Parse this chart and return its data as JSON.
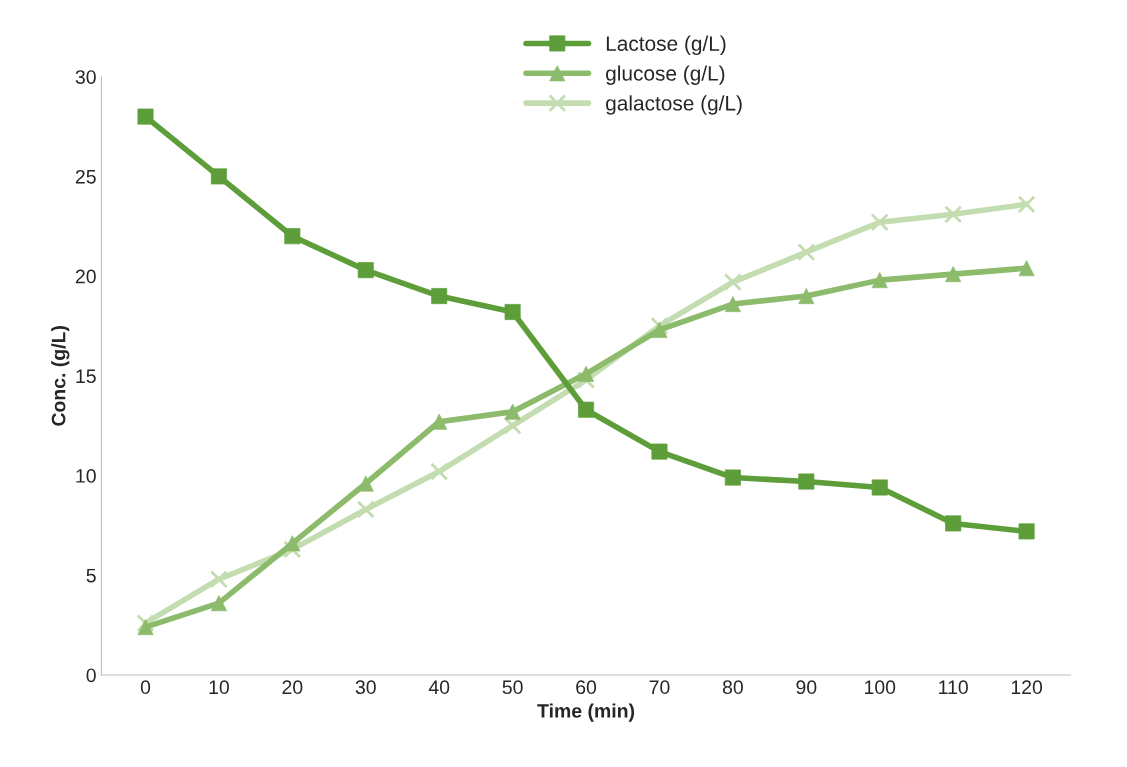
{
  "chart_data": {
    "type": "line",
    "xlabel": "Time (min)",
    "ylabel": "Conc. (g/L)",
    "categories": [
      "0",
      "10",
      "20",
      "30",
      "40",
      "50",
      "60",
      "70",
      "80",
      "90",
      "100",
      "110",
      "120"
    ],
    "series": [
      {
        "name": "Lactose (g/L)",
        "color": "#5e9e3a",
        "marker": "square",
        "values": [
          28.0,
          25.0,
          22.0,
          20.3,
          19.0,
          18.2,
          13.3,
          11.2,
          9.9,
          9.7,
          9.4,
          7.6,
          7.2
        ]
      },
      {
        "name": "glucose (g/L)",
        "color": "#8cbb6b",
        "marker": "triangle",
        "values": [
          2.4,
          3.6,
          6.6,
          9.6,
          12.7,
          13.2,
          15.1,
          17.3,
          18.6,
          19.0,
          19.8,
          20.1,
          20.4
        ]
      },
      {
        "name": "galactose (g/L)",
        "color": "#c3dcb0",
        "marker": "cross",
        "values": [
          2.6,
          4.8,
          6.3,
          8.3,
          10.2,
          12.5,
          14.8,
          17.5,
          19.7,
          21.2,
          22.7,
          23.1,
          23.6
        ]
      }
    ],
    "ylim": [
      0,
      30
    ],
    "yticks": [
      0,
      5,
      10,
      15,
      20,
      25,
      30
    ],
    "grid": false,
    "legend": "top",
    "line_style": "solid"
  }
}
